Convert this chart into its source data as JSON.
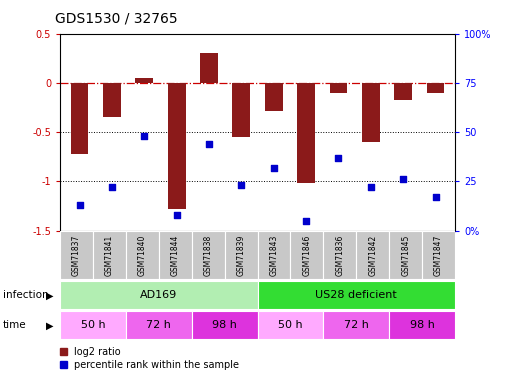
{
  "title": "GDS1530 / 32765",
  "samples": [
    "GSM71837",
    "GSM71841",
    "GSM71840",
    "GSM71844",
    "GSM71838",
    "GSM71839",
    "GSM71843",
    "GSM71846",
    "GSM71836",
    "GSM71842",
    "GSM71845",
    "GSM71847"
  ],
  "log2_ratio": [
    -0.72,
    -0.35,
    0.05,
    -1.28,
    0.3,
    -0.55,
    -0.28,
    -1.02,
    -0.1,
    -0.6,
    -0.17,
    -0.1
  ],
  "percentile_rank": [
    13,
    22,
    48,
    8,
    44,
    23,
    32,
    5,
    37,
    22,
    26,
    17
  ],
  "bar_color": "#8B1A1A",
  "dot_color": "#0000CC",
  "hline_color": "#CC0000",
  "dotted_line_color": "#000000",
  "ylim_left": [
    -1.5,
    0.5
  ],
  "ylim_right": [
    0,
    100
  ],
  "yticks_left": [
    0.5,
    0.0,
    -0.5,
    -1.0,
    -1.5
  ],
  "ytick_labels_left": [
    "0.5",
    "0",
    "-0.5",
    "-1",
    "-1.5"
  ],
  "yticks_right": [
    100,
    75,
    50,
    25,
    0
  ],
  "ytick_labels_right": [
    "100%",
    "75",
    "50",
    "25",
    "0%"
  ],
  "infection_groups": [
    {
      "label": "AD169",
      "start": 0,
      "end": 6,
      "color": "#B2EEB2"
    },
    {
      "label": "US28 deficient",
      "start": 6,
      "end": 12,
      "color": "#33DD33"
    }
  ],
  "time_groups": [
    {
      "label": "50 h",
      "start": 0,
      "end": 2,
      "color": "#FFAAFF"
    },
    {
      "label": "72 h",
      "start": 2,
      "end": 4,
      "color": "#EE66EE"
    },
    {
      "label": "98 h",
      "start": 4,
      "end": 6,
      "color": "#DD33DD"
    },
    {
      "label": "50 h",
      "start": 6,
      "end": 8,
      "color": "#FFAAFF"
    },
    {
      "label": "72 h",
      "start": 8,
      "end": 10,
      "color": "#EE66EE"
    },
    {
      "label": "98 h",
      "start": 10,
      "end": 12,
      "color": "#DD33DD"
    }
  ],
  "sample_box_color": "#C8C8C8",
  "legend_labels": [
    "log2 ratio",
    "percentile rank within the sample"
  ],
  "label_infection": "infection",
  "label_time": "time",
  "background_color": "#FFFFFF"
}
